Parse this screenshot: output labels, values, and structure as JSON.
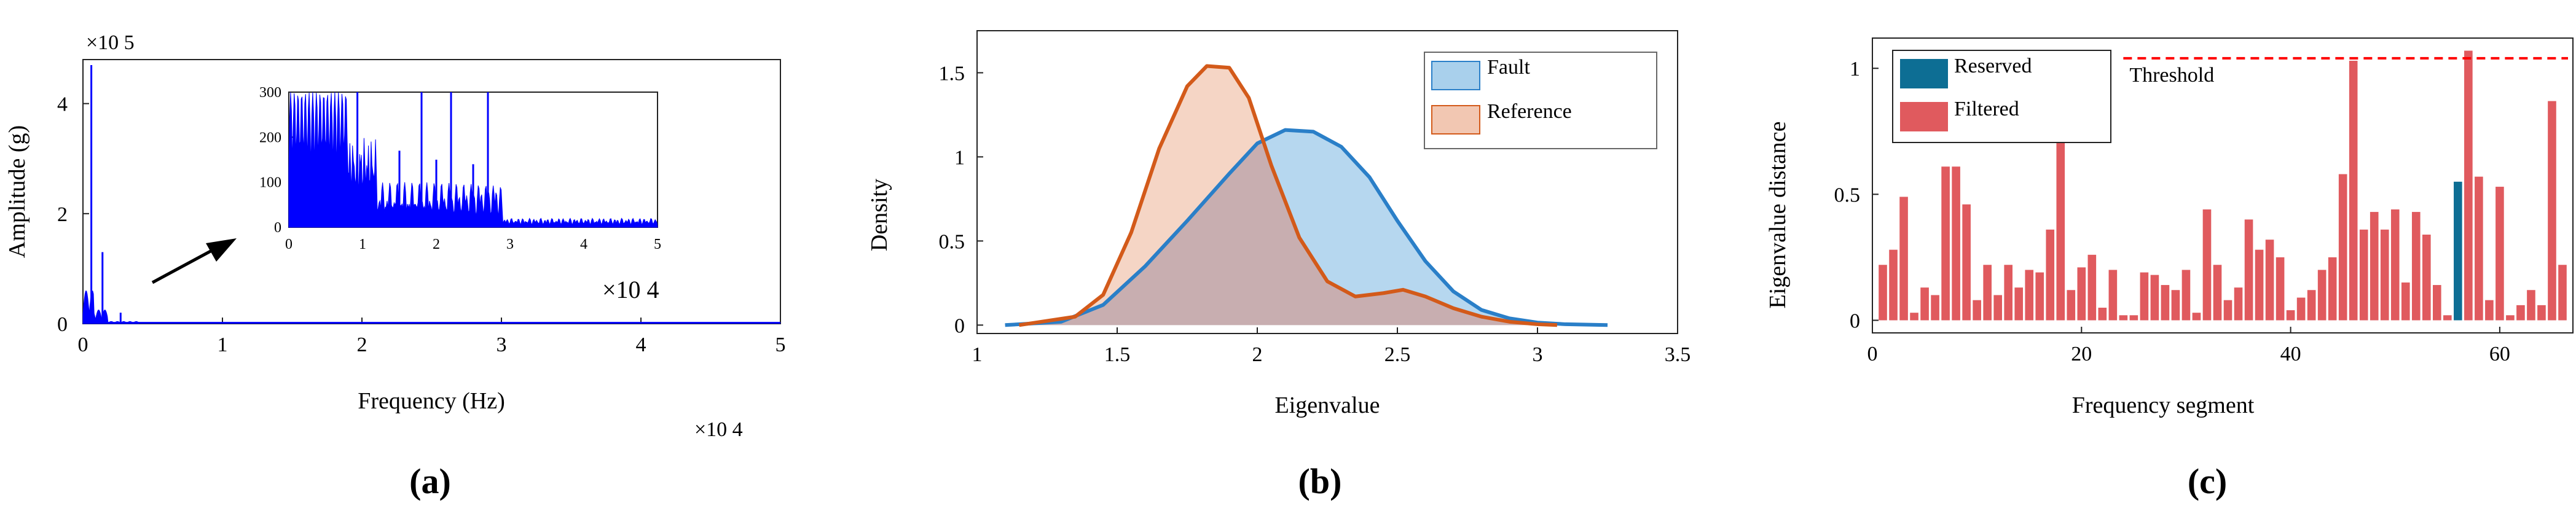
{
  "colors": {
    "fft": "#0000ff",
    "fault_line": "#2a7fc8",
    "fault_fill": "#a9d0ec",
    "reference_line": "#d35a1a",
    "reference_fill": "#f2c7b2",
    "overlap_fill": "#c8aeb0",
    "reserved": "#0d6e94",
    "filtered": "#e05a5e",
    "threshold": "#ff0000"
  },
  "chart_data": [
    {
      "type": "line",
      "panel_label": "(a)",
      "xlabel": "Frequency (Hz)",
      "ylabel": "Amplitude (g)",
      "x_ticks": [
        "0",
        "1",
        "2",
        "3",
        "4",
        "5"
      ],
      "y_ticks": [
        "0",
        "2",
        "4"
      ],
      "x_exponent": "×10 4",
      "y_exponent": "×10 5",
      "xlim": [
        0,
        50000
      ],
      "ylim": [
        0,
        480000
      ],
      "grid": false,
      "peaks": [
        {
          "x": 600,
          "y": 470000
        },
        {
          "x": 1400,
          "y": 130000
        },
        {
          "x": 2700,
          "y": 20000
        }
      ],
      "inset": {
        "x_ticks": [
          "0",
          "1",
          "2",
          "3",
          "4",
          "5"
        ],
        "y_ticks": [
          "0",
          "100",
          "200",
          "300"
        ],
        "x_exponent": "×10 4",
        "xlim": [
          0,
          50000
        ],
        "ylim": [
          0,
          300
        ],
        "peaks": [
          {
            "x": 9300,
            "y": 300
          },
          {
            "x": 18000,
            "y": 300
          },
          {
            "x": 22000,
            "y": 300
          },
          {
            "x": 27000,
            "y": 300
          },
          {
            "x": 15000,
            "y": 170
          },
          {
            "x": 20000,
            "y": 150
          },
          {
            "x": 25000,
            "y": 140
          }
        ]
      }
    },
    {
      "type": "area",
      "panel_label": "(b)",
      "xlabel": "Eigenvalue",
      "ylabel": "Density",
      "x_ticks": [
        "1",
        "1.5",
        "2",
        "2.5",
        "3",
        "3.5"
      ],
      "y_ticks": [
        "0",
        "0.5",
        "1",
        "1.5"
      ],
      "xlim": [
        1,
        3.5
      ],
      "ylim": [
        -0.05,
        1.75
      ],
      "legend_position": "top-right",
      "series": [
        {
          "name": "Fault",
          "x": [
            1.1,
            1.3,
            1.45,
            1.6,
            1.75,
            1.9,
            2.0,
            2.1,
            2.2,
            2.3,
            2.4,
            2.5,
            2.6,
            2.7,
            2.8,
            2.9,
            3.0,
            3.1,
            3.25
          ],
          "y": [
            0.0,
            0.02,
            0.12,
            0.35,
            0.62,
            0.9,
            1.08,
            1.16,
            1.15,
            1.06,
            0.88,
            0.62,
            0.38,
            0.2,
            0.09,
            0.04,
            0.015,
            0.005,
            0.0
          ]
        },
        {
          "name": "Reference",
          "x": [
            1.15,
            1.35,
            1.45,
            1.55,
            1.65,
            1.75,
            1.82,
            1.9,
            1.97,
            2.05,
            2.15,
            2.25,
            2.35,
            2.45,
            2.52,
            2.6,
            2.7,
            2.8,
            2.9,
            3.0,
            3.07
          ],
          "y": [
            0.0,
            0.05,
            0.18,
            0.55,
            1.05,
            1.42,
            1.54,
            1.53,
            1.35,
            0.95,
            0.52,
            0.26,
            0.17,
            0.19,
            0.21,
            0.17,
            0.1,
            0.05,
            0.02,
            0.005,
            0.0
          ]
        }
      ]
    },
    {
      "type": "bar",
      "panel_label": "(c)",
      "xlabel": "Frequency segment",
      "ylabel": "Eigenvalue distance",
      "x_ticks": [
        "0",
        "20",
        "40",
        "60"
      ],
      "y_ticks": [
        "0",
        "0.5",
        "1"
      ],
      "xlim": [
        0,
        67
      ],
      "ylim": [
        -0.05,
        1.12
      ],
      "legend_position": "top-left",
      "threshold": {
        "label": "Threshold",
        "value": 1.04,
        "x_start": 24
      },
      "series": [
        {
          "name": "Reserved",
          "indices": [
            56
          ]
        },
        {
          "name": "Filtered"
        }
      ],
      "values": [
        0.22,
        0.28,
        0.49,
        0.03,
        0.13,
        0.1,
        0.61,
        0.61,
        0.46,
        0.08,
        0.22,
        0.1,
        0.22,
        0.13,
        0.2,
        0.19,
        0.36,
        0.74,
        0.12,
        0.21,
        0.26,
        0.05,
        0.2,
        0.02,
        0.02,
        0.19,
        0.18,
        0.14,
        0.12,
        0.2,
        0.03,
        0.44,
        0.22,
        0.08,
        0.13,
        0.4,
        0.28,
        0.32,
        0.25,
        0.04,
        0.09,
        0.12,
        0.2,
        0.25,
        0.58,
        1.03,
        0.36,
        0.43,
        0.36,
        0.44,
        0.15,
        0.43,
        0.34,
        0.14,
        0.02,
        0.55,
        1.07,
        0.57,
        0.08,
        0.53,
        0.02,
        0.06,
        0.12,
        0.06,
        0.87,
        0.22
      ],
      "x_start": 1
    }
  ]
}
